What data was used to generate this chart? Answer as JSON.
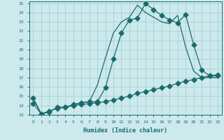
{
  "xlabel": "Humidex (Indice chaleur)",
  "xlim": [
    -0.5,
    23.5
  ],
  "ylim": [
    13,
    25.2
  ],
  "yticks": [
    13,
    14,
    15,
    16,
    17,
    18,
    19,
    20,
    21,
    22,
    23,
    24,
    25
  ],
  "xticks": [
    0,
    1,
    2,
    3,
    4,
    5,
    6,
    7,
    8,
    9,
    10,
    11,
    12,
    13,
    14,
    15,
    16,
    17,
    18,
    19,
    20,
    21,
    22,
    23
  ],
  "bg_color": "#cce9ec",
  "grid_color": "#a8d0d4",
  "line_color": "#1a6b6b",
  "line1_x": [
    0,
    1,
    2,
    3,
    4,
    5,
    6,
    7,
    8,
    9,
    10,
    11,
    12,
    13,
    14,
    15,
    16,
    17,
    18,
    19,
    20,
    21,
    22,
    23
  ],
  "line1_y": [
    14.8,
    13.1,
    13.3,
    13.8,
    13.8,
    14.1,
    14.3,
    14.4,
    14.4,
    15.9,
    19.0,
    21.8,
    23.2,
    23.4,
    25.0,
    24.3,
    23.7,
    23.2,
    22.9,
    23.8,
    20.5,
    17.8,
    17.2,
    17.2
  ],
  "line2_x": [
    0,
    1,
    2,
    3,
    4,
    5,
    6,
    7,
    8,
    9,
    10,
    11,
    12,
    13,
    14,
    15,
    16,
    17,
    18,
    19,
    20,
    21,
    22,
    23
  ],
  "line2_y": [
    14.8,
    13.1,
    13.3,
    13.8,
    13.8,
    14.1,
    14.3,
    14.4,
    16.2,
    19.1,
    21.8,
    23.0,
    23.5,
    24.8,
    24.0,
    23.5,
    23.0,
    22.8,
    23.7,
    20.3,
    17.7,
    17.0,
    17.0,
    17.0
  ],
  "line3_x": [
    0,
    1,
    2,
    3,
    4,
    5,
    6,
    7,
    8,
    9,
    10,
    11,
    12,
    13,
    14,
    15,
    16,
    17,
    18,
    19,
    20,
    21,
    22,
    23
  ],
  "line3_y": [
    14.2,
    13.1,
    13.4,
    13.7,
    13.8,
    14.0,
    14.1,
    14.2,
    14.3,
    14.4,
    14.6,
    14.8,
    15.0,
    15.3,
    15.5,
    15.7,
    15.9,
    16.1,
    16.4,
    16.6,
    16.8,
    17.0,
    17.2,
    17.3
  ]
}
